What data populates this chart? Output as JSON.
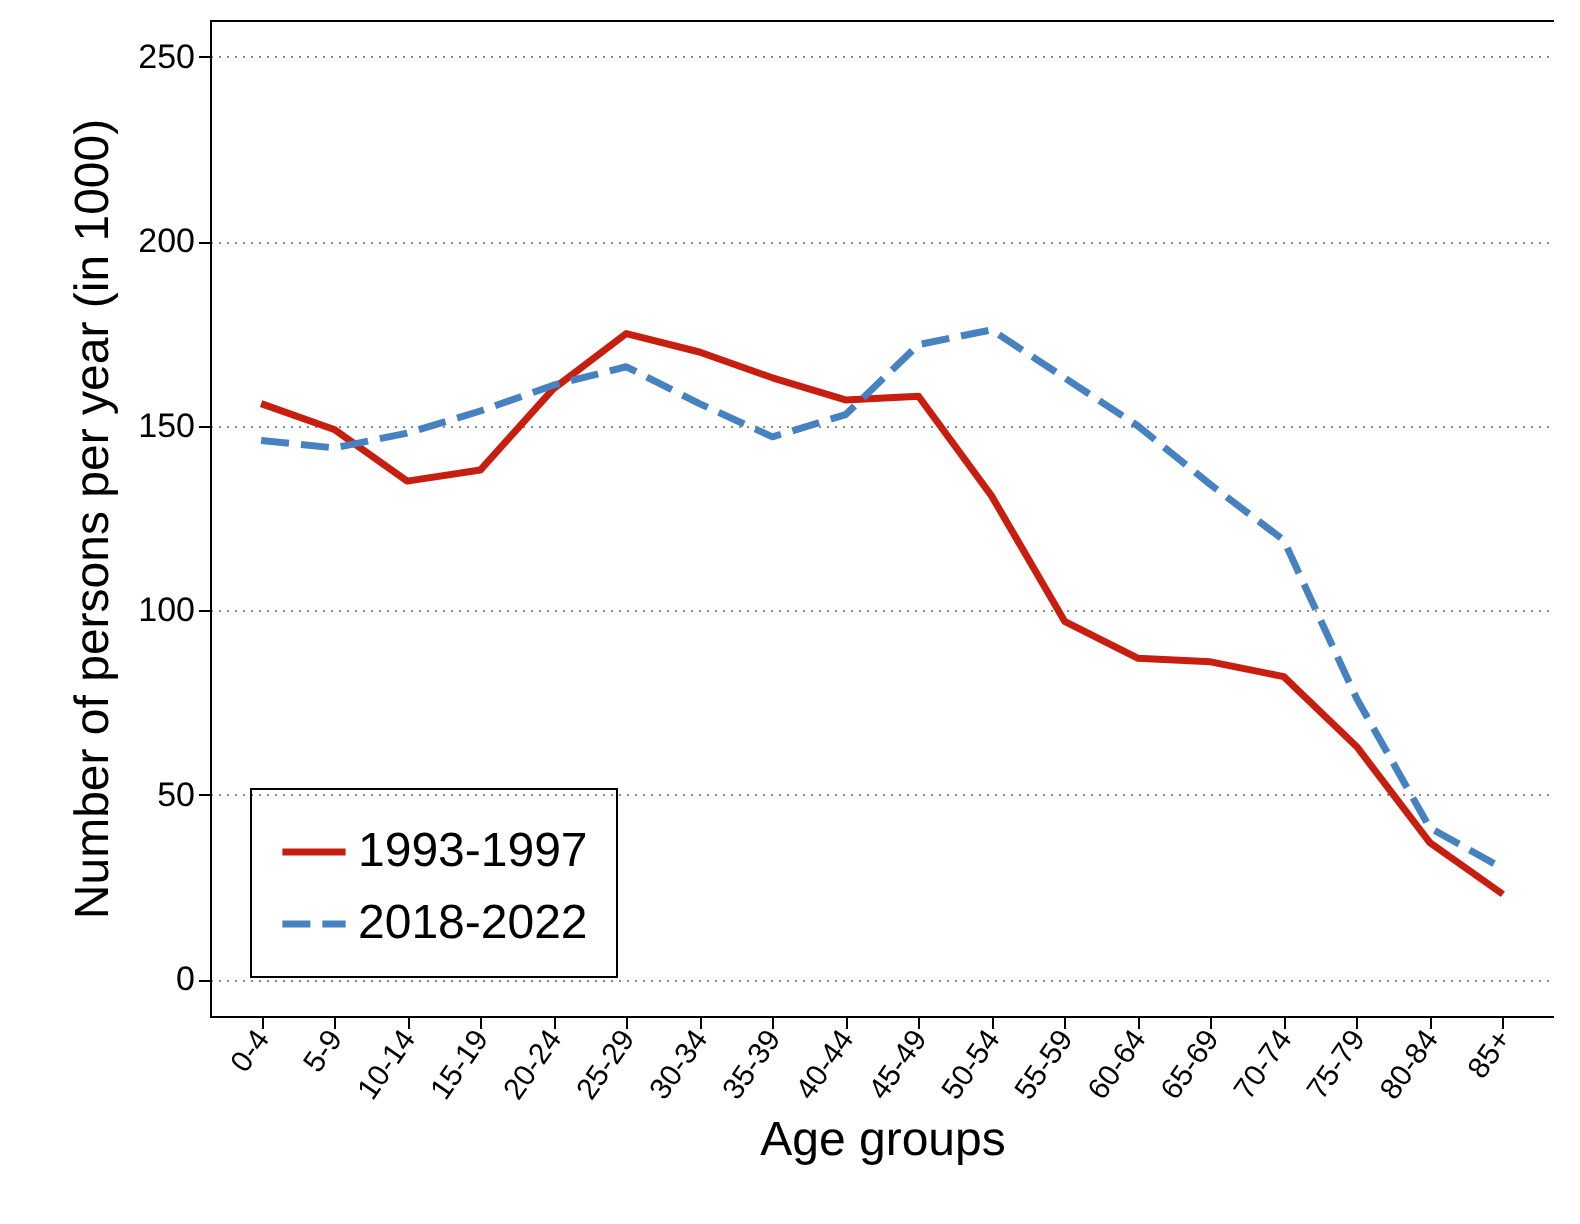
{
  "chart_data": {
    "type": "line",
    "xlabel": "Age groups",
    "ylabel": "Number of persons per year (in 1000)",
    "categories": [
      "0-4",
      "5-9",
      "10-14",
      "15-19",
      "20-24",
      "25-29",
      "30-34",
      "35-39",
      "40-44",
      "45-49",
      "50-54",
      "55-59",
      "60-64",
      "65-69",
      "70-74",
      "75-79",
      "80-84",
      "85+"
    ],
    "series": [
      {
        "name": "1993-1997",
        "color": "#c81e0f",
        "line_style": "solid",
        "values": [
          156,
          149,
          135,
          138,
          160,
          175,
          170,
          163,
          157,
          158,
          131,
          97,
          87,
          86,
          82,
          63,
          37,
          23
        ]
      },
      {
        "name": "2018-2022",
        "color": "#4682c0",
        "line_style": "dashed",
        "values": [
          146,
          144,
          148,
          154,
          161,
          166,
          156,
          147,
          153,
          172,
          176,
          163,
          150,
          134,
          119,
          76,
          41,
          30
        ]
      }
    ],
    "ylim": [
      -10,
      260
    ],
    "yticks": [
      0,
      50,
      100,
      150,
      200,
      250
    ],
    "grid": "y",
    "legend": "bottom left",
    "marker": "none"
  }
}
